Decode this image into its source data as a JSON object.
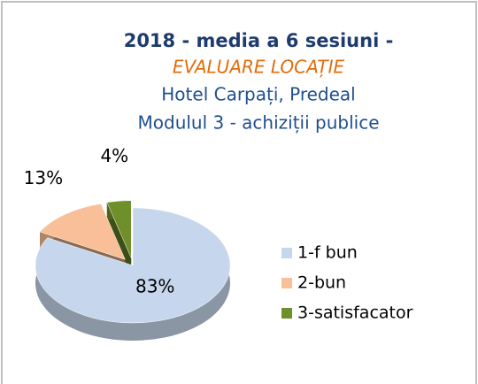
{
  "chart_data": {
    "type": "pie3d",
    "title_lines": [
      "2018 -  media  a 6 sesiuni -",
      "EVALUARE LOCAȚIE",
      "Hotel Carpați, Predeal",
      "Modulul 3 - achiziții publice"
    ],
    "categories": [
      "1-f bun",
      "2-bun",
      "3-satisfacator"
    ],
    "values": [
      83,
      13,
      4
    ],
    "value_labels": [
      "83%",
      "13%",
      "4%"
    ],
    "colors": [
      "#c6d6ec",
      "#f8bf98",
      "#6f8f2a"
    ],
    "legend": "right"
  }
}
